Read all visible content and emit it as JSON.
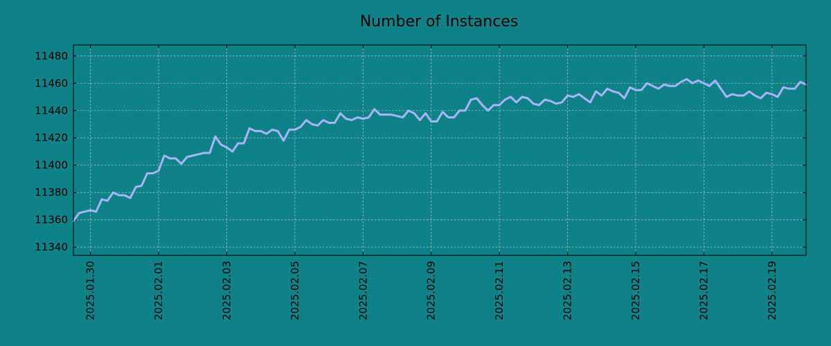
{
  "chart_data": {
    "type": "line",
    "title": "Number of Instances",
    "xlabel": "",
    "ylabel": "",
    "grid": true,
    "legend": "none",
    "line_color": "#a9b4ff",
    "background_color": "#0f8287",
    "x_tick_labels": [
      "2025.01.30",
      "2025.02.01",
      "2025.02.03",
      "2025.02.05",
      "2025.02.07",
      "2025.02.09",
      "2025.02.11",
      "2025.02.13",
      "2025.02.15",
      "2025.02.17",
      "2025.02.19"
    ],
    "y_ticks": [
      11340,
      11360,
      11380,
      11400,
      11420,
      11440,
      11460,
      11480
    ],
    "ylim": [
      11334,
      11488
    ],
    "xlim": [
      "2025-01-29 12:00",
      "2025-02-20 00:00"
    ],
    "x": [
      "2025-01-29 12:00",
      "2025-01-29 16:00",
      "2025-01-29 20:00",
      "2025-01-30 00:00",
      "2025-01-30 04:00",
      "2025-01-30 08:00",
      "2025-01-30 12:00",
      "2025-01-30 16:00",
      "2025-01-30 20:00",
      "2025-01-31 00:00",
      "2025-01-31 04:00",
      "2025-01-31 08:00",
      "2025-01-31 12:00",
      "2025-01-31 16:00",
      "2025-01-31 20:00",
      "2025-02-01 00:00",
      "2025-02-01 04:00",
      "2025-02-01 08:00",
      "2025-02-01 12:00",
      "2025-02-01 16:00",
      "2025-02-01 20:00",
      "2025-02-02 00:00",
      "2025-02-02 04:00",
      "2025-02-02 08:00",
      "2025-02-02 12:00",
      "2025-02-02 16:00",
      "2025-02-02 20:00",
      "2025-02-03 00:00",
      "2025-02-03 04:00",
      "2025-02-03 08:00",
      "2025-02-03 12:00",
      "2025-02-03 16:00",
      "2025-02-03 20:00",
      "2025-02-04 00:00",
      "2025-02-04 04:00",
      "2025-02-04 08:00",
      "2025-02-04 12:00",
      "2025-02-04 16:00",
      "2025-02-04 20:00",
      "2025-02-05 00:00",
      "2025-02-05 04:00",
      "2025-02-05 08:00",
      "2025-02-05 12:00",
      "2025-02-05 16:00",
      "2025-02-05 20:00",
      "2025-02-06 00:00",
      "2025-02-06 04:00",
      "2025-02-06 08:00",
      "2025-02-06 12:00",
      "2025-02-06 16:00",
      "2025-02-06 20:00",
      "2025-02-07 00:00",
      "2025-02-07 04:00",
      "2025-02-07 08:00",
      "2025-02-07 12:00",
      "2025-02-07 16:00",
      "2025-02-07 20:00",
      "2025-02-08 00:00",
      "2025-02-08 04:00",
      "2025-02-08 08:00",
      "2025-02-08 12:00",
      "2025-02-08 16:00",
      "2025-02-08 20:00",
      "2025-02-09 00:00",
      "2025-02-09 04:00",
      "2025-02-09 08:00",
      "2025-02-09 12:00",
      "2025-02-09 16:00",
      "2025-02-09 20:00",
      "2025-02-10 00:00",
      "2025-02-10 04:00",
      "2025-02-10 08:00",
      "2025-02-10 12:00",
      "2025-02-10 16:00",
      "2025-02-10 20:00",
      "2025-02-11 00:00",
      "2025-02-11 04:00",
      "2025-02-11 08:00",
      "2025-02-11 12:00",
      "2025-02-11 16:00",
      "2025-02-11 20:00",
      "2025-02-12 00:00",
      "2025-02-12 04:00",
      "2025-02-12 08:00",
      "2025-02-12 12:00",
      "2025-02-12 16:00",
      "2025-02-12 20:00",
      "2025-02-13 00:00",
      "2025-02-13 04:00",
      "2025-02-13 08:00",
      "2025-02-13 12:00",
      "2025-02-13 16:00",
      "2025-02-13 20:00",
      "2025-02-14 00:00",
      "2025-02-14 04:00",
      "2025-02-14 08:00",
      "2025-02-14 12:00",
      "2025-02-14 16:00",
      "2025-02-14 20:00",
      "2025-02-15 00:00",
      "2025-02-15 04:00",
      "2025-02-15 08:00",
      "2025-02-15 12:00",
      "2025-02-15 16:00",
      "2025-02-15 20:00",
      "2025-02-16 00:00",
      "2025-02-16 04:00",
      "2025-02-16 08:00",
      "2025-02-16 12:00",
      "2025-02-16 16:00",
      "2025-02-16 20:00",
      "2025-02-17 00:00",
      "2025-02-17 04:00",
      "2025-02-17 08:00",
      "2025-02-17 12:00",
      "2025-02-17 16:00",
      "2025-02-17 20:00",
      "2025-02-18 00:00",
      "2025-02-18 04:00",
      "2025-02-18 08:00",
      "2025-02-18 12:00",
      "2025-02-18 16:00",
      "2025-02-18 20:00",
      "2025-02-19 00:00",
      "2025-02-19 04:00",
      "2025-02-19 08:00",
      "2025-02-19 12:00",
      "2025-02-19 16:00",
      "2025-02-19 20:00",
      "2025-02-20 00:00"
    ],
    "values": [
      11359,
      11365,
      11366,
      11367,
      11366,
      11375,
      11374,
      11380,
      11378,
      11378,
      11376,
      11384,
      11385,
      11394,
      11394,
      11396,
      11407,
      11405,
      11405,
      11401,
      11406,
      11407,
      11408,
      11409,
      11409,
      11421,
      11415,
      11413,
      11410,
      11416,
      11416,
      11427,
      11425,
      11425,
      11423,
      11426,
      11425,
      11418,
      11426,
      11426,
      11428,
      11433,
      11430,
      11429,
      11433,
      11431,
      11431,
      11438,
      11434,
      11433,
      11435,
      11434,
      11435,
      11441,
      11437,
      11437,
      11437,
      11436,
      11435,
      11440,
      11438,
      11433,
      11438,
      11432,
      11432,
      11439,
      11435,
      11435,
      11440,
      11440,
      11448,
      11449,
      11444,
      11440,
      11444,
      11444,
      11448,
      11450,
      11446,
      11450,
      11449,
      11445,
      11444,
      11448,
      11447,
      11445,
      11446,
      11451,
      11450,
      11452,
      11449,
      11446,
      11454,
      11451,
      11456,
      11454,
      11453,
      11449,
      11457,
      11455,
      11455,
      11460,
      11458,
      11456,
      11459,
      11458,
      11458,
      11461,
      11463,
      11460,
      11462,
      11460,
      11458,
      11462,
      11456,
      11450,
      11452,
      11451,
      11451,
      11454,
      11451,
      11449,
      11453,
      11452,
      11450,
      11457,
      11456,
      11456,
      11461,
      11459
    ]
  }
}
